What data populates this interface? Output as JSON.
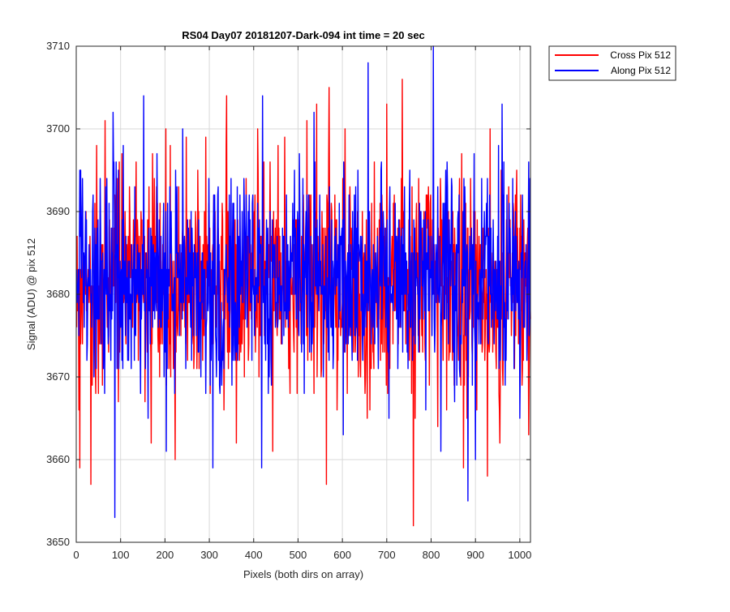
{
  "chart_data": {
    "type": "line",
    "title": "RS04 Day07 20181207-Dark-094 int time = 20 sec",
    "xlabel": "Pixels (both dirs on array)",
    "ylabel": "Signal (ADU) @ pix 512",
    "xlim": [
      0,
      1024
    ],
    "ylim": [
      3650,
      3710
    ],
    "xticks": [
      0,
      100,
      200,
      300,
      400,
      500,
      600,
      700,
      800,
      900,
      1000
    ],
    "yticks": [
      3650,
      3660,
      3670,
      3680,
      3690,
      3700,
      3710
    ],
    "grid": true,
    "legend_position": "outside top-right",
    "series": [
      {
        "name": "Cross Pix 512",
        "color": "#ff0000",
        "x_start": 1,
        "x_step": 1,
        "count": 1024,
        "mean": 3681.3,
        "spread": 6.5,
        "seed": 17,
        "extremes": [
          {
            "x": 2,
            "y": 3687
          },
          {
            "x": 6,
            "y": 3666
          },
          {
            "x": 8,
            "y": 3659
          },
          {
            "x": 12,
            "y": 3688
          },
          {
            "x": 33,
            "y": 3657
          },
          {
            "x": 46,
            "y": 3698
          },
          {
            "x": 65,
            "y": 3701
          },
          {
            "x": 103,
            "y": 3697
          },
          {
            "x": 164,
            "y": 3693
          },
          {
            "x": 169,
            "y": 3662
          },
          {
            "x": 202,
            "y": 3700
          },
          {
            "x": 223,
            "y": 3660
          },
          {
            "x": 248,
            "y": 3699
          },
          {
            "x": 274,
            "y": 3695
          },
          {
            "x": 292,
            "y": 3699
          },
          {
            "x": 339,
            "y": 3704
          },
          {
            "x": 361,
            "y": 3662
          },
          {
            "x": 409,
            "y": 3700
          },
          {
            "x": 443,
            "y": 3661
          },
          {
            "x": 470,
            "y": 3699
          },
          {
            "x": 520,
            "y": 3701
          },
          {
            "x": 542,
            "y": 3703
          },
          {
            "x": 564,
            "y": 3657
          },
          {
            "x": 570,
            "y": 3705
          },
          {
            "x": 606,
            "y": 3700
          },
          {
            "x": 700,
            "y": 3703
          },
          {
            "x": 735,
            "y": 3706
          },
          {
            "x": 760,
            "y": 3652
          },
          {
            "x": 873,
            "y": 3659
          },
          {
            "x": 903,
            "y": 3666
          },
          {
            "x": 927,
            "y": 3658
          },
          {
            "x": 933,
            "y": 3700
          },
          {
            "x": 955,
            "y": 3662
          },
          {
            "x": 1020,
            "y": 3663
          }
        ]
      },
      {
        "name": "Along Pix 512",
        "color": "#0000ff",
        "x_start": 1,
        "x_step": 1,
        "count": 1024,
        "mean": 3681.8,
        "spread": 6.0,
        "seed": 91,
        "extremes": [
          {
            "x": 8,
            "y": 3695
          },
          {
            "x": 83,
            "y": 3702
          },
          {
            "x": 87,
            "y": 3653
          },
          {
            "x": 152,
            "y": 3704
          },
          {
            "x": 162,
            "y": 3665
          },
          {
            "x": 203,
            "y": 3661
          },
          {
            "x": 240,
            "y": 3700
          },
          {
            "x": 308,
            "y": 3659
          },
          {
            "x": 320,
            "y": 3693
          },
          {
            "x": 418,
            "y": 3659
          },
          {
            "x": 420,
            "y": 3704
          },
          {
            "x": 536,
            "y": 3702
          },
          {
            "x": 602,
            "y": 3663
          },
          {
            "x": 658,
            "y": 3708
          },
          {
            "x": 705,
            "y": 3665
          },
          {
            "x": 805,
            "y": 3710
          },
          {
            "x": 822,
            "y": 3661
          },
          {
            "x": 883,
            "y": 3655
          },
          {
            "x": 900,
            "y": 3660
          },
          {
            "x": 960,
            "y": 3703
          },
          {
            "x": 1000,
            "y": 3665
          },
          {
            "x": 1020,
            "y": 3696
          }
        ]
      }
    ]
  }
}
